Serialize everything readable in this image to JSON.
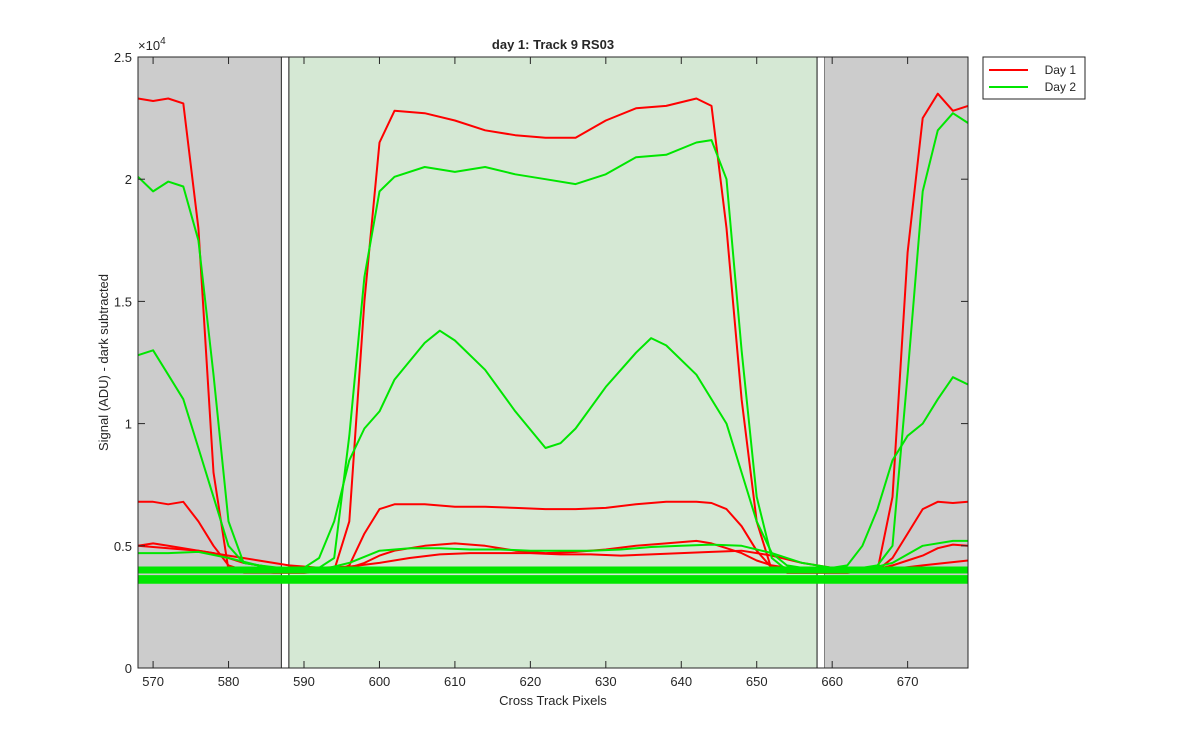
{
  "chart_data": {
    "type": "line",
    "title": "day 1: Track 9  RS03",
    "xlabel": "Cross Track Pixels",
    "ylabel": "Signal (ADU) - dark subtracted",
    "exponent_label": "×10",
    "exponent_power": "4",
    "xlim": [
      568,
      678
    ],
    "ylim": [
      0,
      25000
    ],
    "x_ticks": [
      570,
      580,
      590,
      600,
      610,
      620,
      630,
      640,
      650,
      660,
      670
    ],
    "y_ticks": [
      0,
      5000,
      10000,
      15000,
      20000,
      25000
    ],
    "y_tick_labels": [
      "0",
      "0.5",
      "1",
      "1.5",
      "2",
      "2.5"
    ],
    "grid": false,
    "legend_position": "top-right outside",
    "regions": [
      {
        "kind": "excluded",
        "x_start": 568,
        "x_end": 587,
        "color": "#cccccc"
      },
      {
        "kind": "gap",
        "x_start": 587,
        "x_end": 588,
        "color": "#ffffff"
      },
      {
        "kind": "active",
        "x_start": 588,
        "x_end": 658,
        "color": "#d5e8d4"
      },
      {
        "kind": "gap",
        "x_start": 658,
        "x_end": 659,
        "color": "#ffffff"
      },
      {
        "kind": "excluded",
        "x_start": 659,
        "x_end": 678,
        "color": "#cccccc"
      }
    ],
    "series": [
      {
        "name": "Day 1",
        "color": "#ff0000",
        "x": [
          568,
          570,
          572,
          574,
          576,
          578,
          580,
          582,
          586,
          590,
          594,
          596,
          598,
          600,
          602,
          606,
          610,
          614,
          618,
          622,
          626,
          630,
          634,
          638,
          642,
          644,
          646,
          648,
          650,
          652,
          654,
          658,
          662,
          666,
          668,
          670,
          672,
          674,
          676,
          678
        ],
        "y": [
          23300,
          23200,
          23300,
          23100,
          18000,
          8000,
          4000,
          3900,
          3900,
          3900,
          4000,
          6000,
          15000,
          21500,
          22800,
          22700,
          22400,
          22000,
          21800,
          21700,
          21700,
          22400,
          22900,
          23000,
          23300,
          23000,
          18000,
          11000,
          6000,
          4000,
          3900,
          3900,
          3900,
          4000,
          7000,
          17000,
          22500,
          23500,
          22800,
          23000
        ]
      },
      {
        "name": "Day 1",
        "color": "#ff0000",
        "x": [
          568,
          570,
          572,
          574,
          576,
          578,
          580,
          582,
          586,
          590,
          594,
          596,
          598,
          600,
          602,
          606,
          610,
          614,
          618,
          622,
          626,
          630,
          634,
          638,
          642,
          644,
          646,
          648,
          650,
          652,
          654,
          658,
          662,
          666,
          668,
          670,
          672,
          674,
          676,
          678
        ],
        "y": [
          6800,
          6800,
          6700,
          6800,
          6000,
          5000,
          4200,
          4000,
          3900,
          3900,
          3950,
          4200,
          5500,
          6500,
          6700,
          6700,
          6600,
          6600,
          6550,
          6500,
          6500,
          6550,
          6700,
          6800,
          6800,
          6750,
          6500,
          5800,
          4800,
          4100,
          3900,
          3900,
          3900,
          4000,
          4500,
          5500,
          6500,
          6800,
          6750,
          6800
        ]
      },
      {
        "name": "Day 1",
        "color": "#ff0000",
        "x": [
          568,
          570,
          572,
          574,
          576,
          578,
          580,
          582,
          586,
          590,
          594,
          596,
          598,
          600,
          602,
          606,
          610,
          614,
          618,
          622,
          626,
          630,
          634,
          638,
          642,
          644,
          646,
          648,
          650,
          652,
          654,
          658,
          662,
          666,
          668,
          670,
          672,
          674,
          676,
          678
        ],
        "y": [
          5000,
          5100,
          5000,
          4900,
          4800,
          4700,
          4500,
          4300,
          4100,
          4000,
          4000,
          4100,
          4300,
          4600,
          4800,
          5000,
          5100,
          5000,
          4800,
          4700,
          4750,
          4850,
          5000,
          5100,
          5200,
          5100,
          4900,
          4700,
          4400,
          4200,
          4100,
          4000,
          4000,
          4050,
          4200,
          4400,
          4600,
          4900,
          5050,
          5000
        ]
      },
      {
        "name": "Day 1",
        "color": "#ff0000",
        "x": [
          568,
          572,
          576,
          580,
          584,
          588,
          592,
          596,
          600,
          604,
          608,
          612,
          616,
          620,
          624,
          628,
          632,
          636,
          640,
          644,
          648,
          652,
          656,
          660,
          664,
          668,
          672,
          678
        ],
        "y": [
          5000,
          4900,
          4800,
          4600,
          4400,
          4200,
          4100,
          4150,
          4300,
          4500,
          4650,
          4700,
          4700,
          4700,
          4650,
          4650,
          4600,
          4650,
          4700,
          4750,
          4800,
          4600,
          4300,
          4100,
          4000,
          4050,
          4200,
          4400
        ]
      },
      {
        "name": "Day 2",
        "color": "#00e600",
        "x": [
          568,
          570,
          572,
          574,
          576,
          578,
          580,
          582,
          586,
          590,
          592,
          594,
          596,
          598,
          600,
          602,
          606,
          610,
          614,
          618,
          622,
          626,
          630,
          634,
          638,
          642,
          644,
          646,
          648,
          650,
          652,
          654,
          658,
          662,
          666,
          668,
          670,
          672,
          674,
          676,
          678
        ],
        "y": [
          20100,
          19500,
          19900,
          19700,
          17500,
          12000,
          6000,
          4300,
          4100,
          4000,
          4100,
          4500,
          9500,
          16000,
          19500,
          20100,
          20500,
          20300,
          20500,
          20200,
          20000,
          19800,
          20200,
          20900,
          21000,
          21500,
          21600,
          20000,
          13000,
          7000,
          4500,
          4000,
          3950,
          4000,
          4200,
          5000,
          12000,
          19500,
          22000,
          22700,
          22300
        ]
      },
      {
        "name": "Day 2",
        "color": "#00e600",
        "x": [
          568,
          570,
          572,
          574,
          576,
          578,
          580,
          582,
          586,
          590,
          592,
          594,
          596,
          598,
          600,
          602,
          606,
          608,
          610,
          614,
          618,
          622,
          624,
          626,
          630,
          634,
          636,
          638,
          642,
          646,
          648,
          650,
          652,
          654,
          658,
          662,
          664,
          666,
          668,
          670,
          672,
          674,
          676,
          678
        ],
        "y": [
          12800,
          13000,
          12000,
          11000,
          9000,
          7000,
          5000,
          4300,
          4100,
          4100,
          4500,
          6000,
          8500,
          9800,
          10500,
          11800,
          13300,
          13800,
          13400,
          12200,
          10500,
          9000,
          9200,
          9800,
          11500,
          12900,
          13500,
          13200,
          12000,
          10000,
          8000,
          6000,
          4700,
          4200,
          4000,
          4200,
          5000,
          6500,
          8500,
          9500,
          10000,
          11000,
          11900,
          11600
        ]
      },
      {
        "name": "Day 2",
        "color": "#00e600",
        "x": [
          568,
          572,
          576,
          580,
          584,
          588,
          592,
          596,
          600,
          604,
          608,
          612,
          616,
          620,
          624,
          628,
          632,
          636,
          640,
          644,
          648,
          652,
          656,
          660,
          664,
          668,
          672,
          676,
          678
        ],
        "y": [
          4700,
          4700,
          4750,
          4500,
          4200,
          4050,
          4000,
          4300,
          4800,
          4900,
          4900,
          4850,
          4850,
          4800,
          4800,
          4800,
          4850,
          4950,
          5000,
          5050,
          5000,
          4700,
          4300,
          4100,
          4000,
          4300,
          5000,
          5200,
          5200
        ]
      },
      {
        "name": "Day 2",
        "color": "#00e600",
        "width": 5,
        "x": [
          568,
          678
        ],
        "y": [
          4050,
          4050
        ]
      },
      {
        "name": "Day 2",
        "color": "#00e600",
        "width": 4,
        "x": [
          568,
          678
        ],
        "y": [
          3950,
          3950
        ]
      },
      {
        "name": "Day 2",
        "color": "#00e600",
        "width": 5,
        "x": [
          568,
          678
        ],
        "y": [
          3700,
          3700
        ]
      },
      {
        "name": "Day 2",
        "color": "#00e600",
        "width": 5,
        "x": [
          568,
          678
        ],
        "y": [
          3550,
          3550
        ]
      }
    ],
    "legend": [
      {
        "label": "Day 1",
        "color": "#ff0000"
      },
      {
        "label": "Day 2",
        "color": "#00e600"
      }
    ]
  }
}
